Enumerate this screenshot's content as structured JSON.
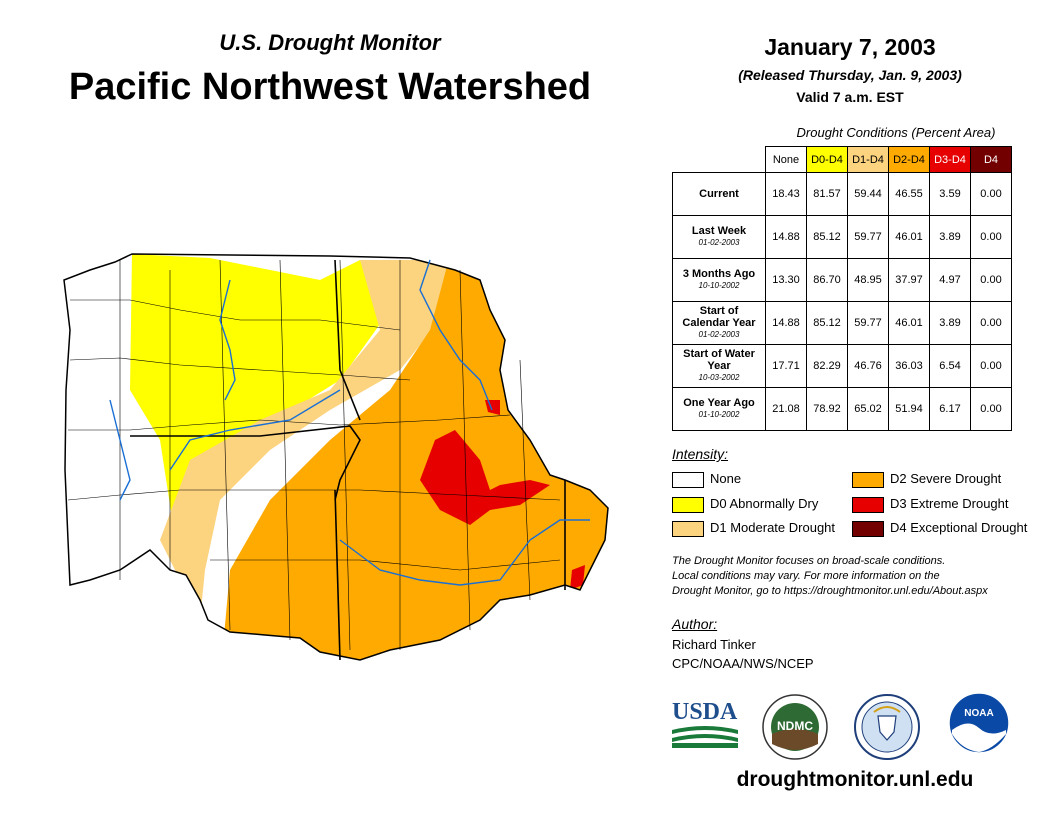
{
  "header": {
    "subtitle": "U.S. Drought Monitor",
    "title": "Pacific Northwest Watershed",
    "date": "January 7, 2003",
    "released": "(Released Thursday, Jan. 9, 2003)",
    "valid": "Valid 7 a.m. EST"
  },
  "conditions": {
    "title": "Drought Conditions (Percent Area)",
    "columns": [
      "None",
      "D0-D4",
      "D1-D4",
      "D2-D4",
      "D3-D4",
      "D4"
    ],
    "column_colors": [
      "#ffffff",
      "#ffff00",
      "#fcd37f",
      "#ffaa00",
      "#e60000",
      "#730000"
    ],
    "rows": [
      {
        "label": "Current",
        "date": "",
        "values": [
          "18.43",
          "81.57",
          "59.44",
          "46.55",
          "3.59",
          "0.00"
        ]
      },
      {
        "label": "Last Week",
        "date": "01-02-2003",
        "values": [
          "14.88",
          "85.12",
          "59.77",
          "46.01",
          "3.89",
          "0.00"
        ]
      },
      {
        "label": "3 Months Ago",
        "date": "10-10-2002",
        "values": [
          "13.30",
          "86.70",
          "48.95",
          "37.97",
          "4.97",
          "0.00"
        ]
      },
      {
        "label": "Start of Calendar Year",
        "date": "01-02-2003",
        "values": [
          "14.88",
          "85.12",
          "59.77",
          "46.01",
          "3.89",
          "0.00"
        ]
      },
      {
        "label": "Start of Water Year",
        "date": "10-03-2002",
        "values": [
          "17.71",
          "82.29",
          "46.76",
          "36.03",
          "6.54",
          "0.00"
        ]
      },
      {
        "label": "One Year Ago",
        "date": "01-10-2002",
        "values": [
          "21.08",
          "78.92",
          "65.02",
          "51.94",
          "6.17",
          "0.00"
        ]
      }
    ]
  },
  "legend": {
    "title": "Intensity:",
    "items": [
      {
        "label": "None",
        "color": "#ffffff"
      },
      {
        "label": "D0 Abnormally Dry",
        "color": "#ffff00"
      },
      {
        "label": "D1 Moderate Drought",
        "color": "#fcd37f"
      },
      {
        "label": "D2 Severe Drought",
        "color": "#ffaa00"
      },
      {
        "label": "D3 Extreme Drought",
        "color": "#e60000"
      },
      {
        "label": "D4 Exceptional Drought",
        "color": "#730000"
      }
    ]
  },
  "note": {
    "line1": "The Drought Monitor focuses on broad-scale conditions.",
    "line2": "Local conditions may vary. For more information on the",
    "line3": "Drought Monitor, go to https://droughtmonitor.unl.edu/About.aspx"
  },
  "author": {
    "title": "Author:",
    "name": "Richard Tinker",
    "org": "CPC/NOAA/NWS/NCEP"
  },
  "logos": {
    "usda": "USDA",
    "ndmc": "NDMC",
    "noaa": "NOAA"
  },
  "footer_url": "droughtmonitor.unl.edu"
}
